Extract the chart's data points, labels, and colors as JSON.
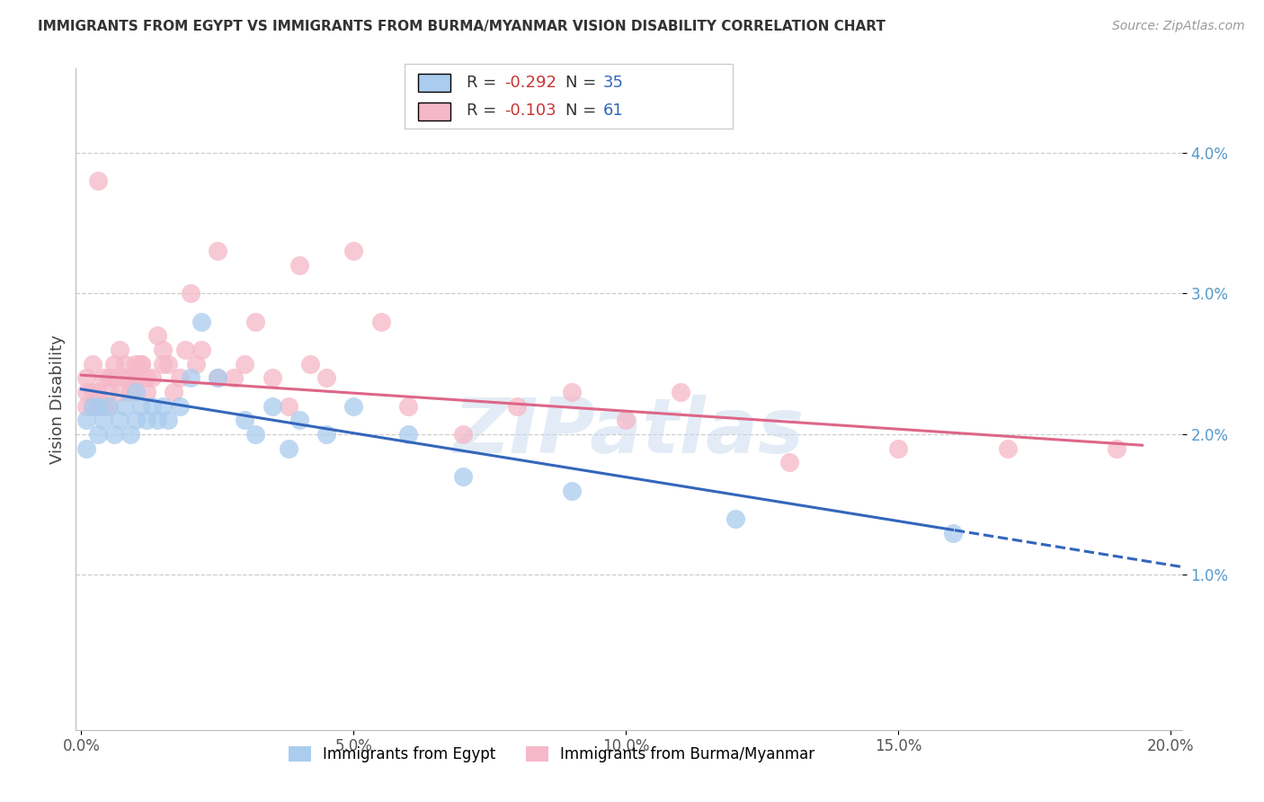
{
  "title": "IMMIGRANTS FROM EGYPT VS IMMIGRANTS FROM BURMA/MYANMAR VISION DISABILITY CORRELATION CHART",
  "source": "Source: ZipAtlas.com",
  "ylabel": "Vision Disability",
  "xlim": [
    -0.001,
    0.202
  ],
  "ylim": [
    -0.001,
    0.046
  ],
  "ytick_vals": [
    0.01,
    0.02,
    0.03,
    0.04
  ],
  "xtick_vals": [
    0.0,
    0.05,
    0.1,
    0.15,
    0.2
  ],
  "egypt_color_scatter": "#aaccee",
  "burma_color_scatter": "#f5b8c8",
  "egypt_color_line": "#3366bb",
  "burma_color_line": "#dd6688",
  "egypt_R": -0.292,
  "egypt_N": 35,
  "burma_R": -0.103,
  "burma_N": 61,
  "legend_label_egypt": "Immigrants from Egypt",
  "legend_label_burma": "Immigrants from Burma/Myanmar",
  "watermark": "ZIPatlas",
  "egypt_x": [
    0.001,
    0.001,
    0.002,
    0.003,
    0.003,
    0.004,
    0.005,
    0.006,
    0.007,
    0.008,
    0.009,
    0.01,
    0.01,
    0.011,
    0.012,
    0.013,
    0.014,
    0.015,
    0.016,
    0.018,
    0.02,
    0.022,
    0.025,
    0.03,
    0.032,
    0.035,
    0.038,
    0.04,
    0.045,
    0.05,
    0.06,
    0.07,
    0.09,
    0.12,
    0.16
  ],
  "egypt_y": [
    0.021,
    0.019,
    0.022,
    0.022,
    0.02,
    0.021,
    0.022,
    0.02,
    0.021,
    0.022,
    0.02,
    0.023,
    0.021,
    0.022,
    0.021,
    0.022,
    0.021,
    0.022,
    0.021,
    0.022,
    0.024,
    0.028,
    0.024,
    0.021,
    0.02,
    0.022,
    0.019,
    0.021,
    0.02,
    0.022,
    0.02,
    0.017,
    0.016,
    0.014,
    0.013
  ],
  "burma_x": [
    0.001,
    0.001,
    0.001,
    0.002,
    0.002,
    0.002,
    0.003,
    0.003,
    0.003,
    0.004,
    0.004,
    0.005,
    0.005,
    0.005,
    0.006,
    0.006,
    0.007,
    0.007,
    0.008,
    0.008,
    0.009,
    0.009,
    0.01,
    0.01,
    0.011,
    0.011,
    0.012,
    0.012,
    0.013,
    0.014,
    0.015,
    0.015,
    0.016,
    0.017,
    0.018,
    0.019,
    0.02,
    0.021,
    0.022,
    0.025,
    0.025,
    0.028,
    0.03,
    0.032,
    0.035,
    0.038,
    0.04,
    0.042,
    0.045,
    0.05,
    0.055,
    0.06,
    0.07,
    0.08,
    0.09,
    0.1,
    0.11,
    0.13,
    0.15,
    0.17,
    0.19
  ],
  "burma_y": [
    0.023,
    0.022,
    0.024,
    0.023,
    0.022,
    0.025,
    0.038,
    0.023,
    0.022,
    0.024,
    0.022,
    0.023,
    0.024,
    0.022,
    0.025,
    0.024,
    0.023,
    0.026,
    0.024,
    0.025,
    0.023,
    0.024,
    0.025,
    0.024,
    0.025,
    0.025,
    0.023,
    0.024,
    0.024,
    0.027,
    0.025,
    0.026,
    0.025,
    0.023,
    0.024,
    0.026,
    0.03,
    0.025,
    0.026,
    0.033,
    0.024,
    0.024,
    0.025,
    0.028,
    0.024,
    0.022,
    0.032,
    0.025,
    0.024,
    0.033,
    0.028,
    0.022,
    0.02,
    0.022,
    0.023,
    0.021,
    0.023,
    0.018,
    0.019,
    0.019,
    0.019
  ]
}
